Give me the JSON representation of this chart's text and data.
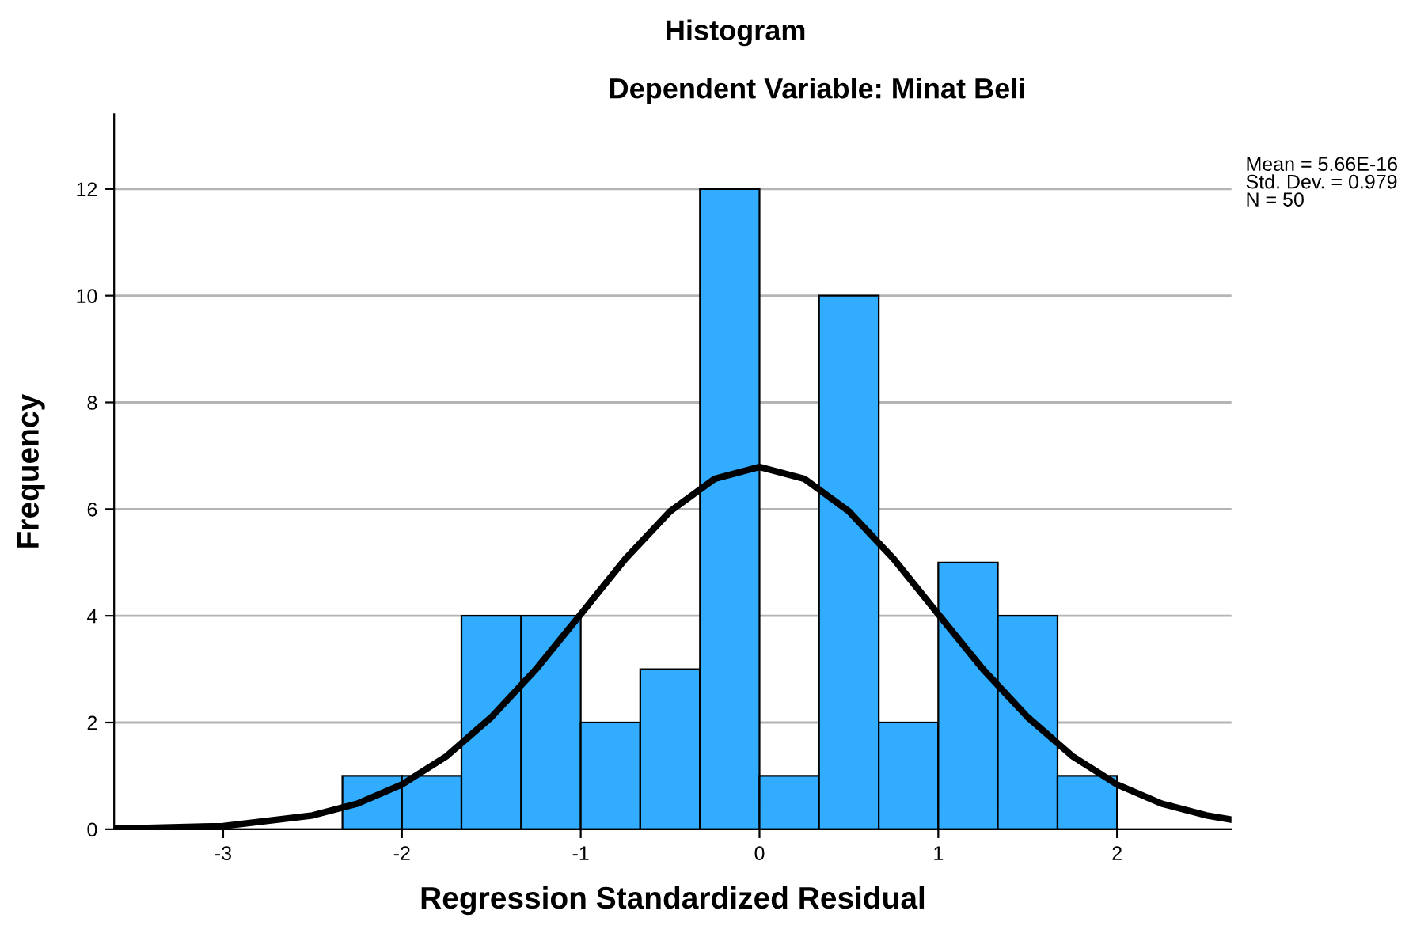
{
  "chart_data": {
    "type": "histogram",
    "title": "Histogram",
    "subtitle": "Dependent Variable: Minat Beli",
    "xlabel": "Regression Standardized Residual",
    "ylabel": "Frequency",
    "bins": [
      -2.333,
      -2.0,
      -1.667,
      -1.333,
      -1.0,
      -0.667,
      -0.333,
      0.0,
      0.333,
      0.667,
      1.0,
      1.333,
      1.667,
      2.0
    ],
    "values": [
      1,
      1,
      4,
      4,
      2,
      3,
      12,
      1,
      10,
      2,
      5,
      4,
      1
    ],
    "color": "#31acfe",
    "series": [
      {
        "type": "line",
        "color": "#000000",
        "x": [
          -3.6,
          -3.0,
          -2.5,
          -2.25,
          -2.0,
          -1.75,
          -1.5,
          -1.25,
          -1.0,
          -0.75,
          -0.5,
          -0.25,
          0.0,
          0.25,
          0.5,
          0.75,
          1.0,
          1.25,
          1.5,
          1.75,
          2.0,
          2.25,
          2.5,
          2.64
        ],
        "values": [
          0.01,
          0.06,
          0.26,
          0.48,
          0.84,
          1.37,
          2.1,
          3.0,
          4.03,
          5.07,
          5.96,
          6.57,
          6.79,
          6.57,
          5.96,
          5.07,
          4.03,
          3.0,
          2.1,
          1.37,
          0.84,
          0.48,
          0.26,
          0.18
        ]
      }
    ],
    "xlim": [
      -3.61,
      2.64
    ],
    "ylim": [
      0,
      13.4
    ],
    "xticks": [
      -3,
      -2,
      -1,
      0,
      1,
      2
    ],
    "yticks": [
      0,
      2,
      4,
      6,
      8,
      10,
      12
    ],
    "grid": "y",
    "annotations": [
      "Mean = 5.66E-16\nStd. Dev. = 0.979\nN = 50"
    ]
  }
}
